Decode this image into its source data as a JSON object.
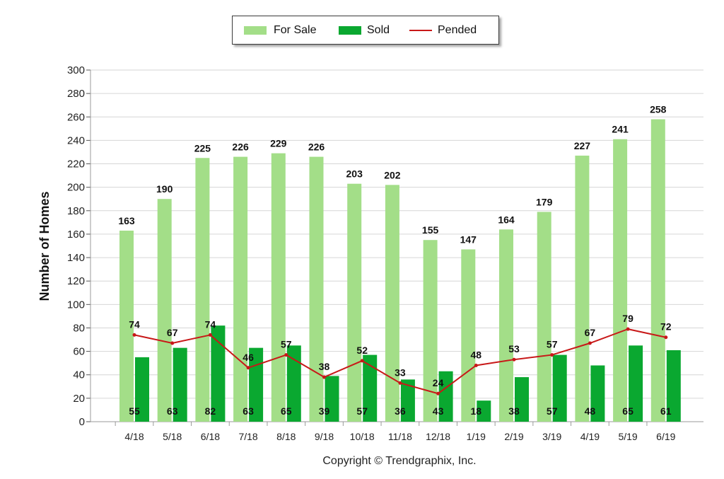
{
  "chart_data": {
    "type": "bar",
    "categories": [
      "4/18",
      "5/18",
      "6/18",
      "7/18",
      "8/18",
      "9/18",
      "10/18",
      "11/18",
      "12/18",
      "1/19",
      "2/19",
      "3/19",
      "4/19",
      "5/19",
      "6/19"
    ],
    "series": [
      {
        "name": "For Sale",
        "kind": "bar",
        "color": "#a3de88",
        "values": [
          163,
          190,
          225,
          226,
          229,
          226,
          203,
          202,
          155,
          147,
          164,
          179,
          227,
          241,
          258
        ]
      },
      {
        "name": "Sold",
        "kind": "bar",
        "color": "#0aa830",
        "values": [
          55,
          63,
          82,
          63,
          65,
          39,
          57,
          36,
          43,
          18,
          38,
          57,
          48,
          65,
          61
        ]
      },
      {
        "name": "Pended",
        "kind": "line",
        "color": "#c81818",
        "values": [
          74,
          67,
          74,
          46,
          57,
          38,
          52,
          33,
          24,
          48,
          53,
          57,
          67,
          79,
          72
        ]
      }
    ],
    "ylabel": "Number of Homes",
    "ylim": [
      0,
      300
    ],
    "yticks": [
      0,
      20,
      40,
      60,
      80,
      100,
      120,
      140,
      160,
      180,
      200,
      220,
      240,
      260,
      280,
      300
    ],
    "grid": true,
    "legend_position": "top-center"
  },
  "legend": {
    "for_sale": "For Sale",
    "sold": "Sold",
    "pended": "Pended"
  },
  "footer": {
    "copyright": "Copyright © Trendgraphix, Inc."
  }
}
